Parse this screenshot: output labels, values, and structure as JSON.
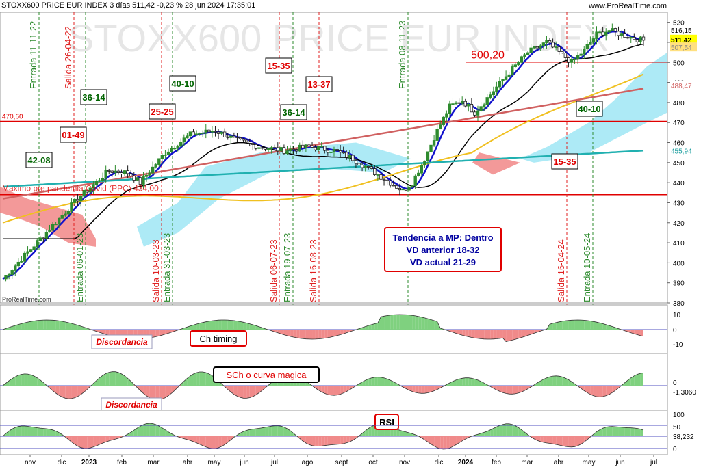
{
  "header": {
    "title": "STOXX600 PRICE EUR INDEX 3 días 511,42 -0,23 % 28 jun 2024 17:35:01",
    "site": "www.ProRealTime.com",
    "watermark": "STOXX600 PRICE EUR INDEX",
    "logo_small": "ProRealTime.com"
  },
  "colors": {
    "price_up": "#2e8b2e",
    "price_down": "#1a1a1a",
    "blue_ma": "#1010cc",
    "black_ma": "#000000",
    "yellow_ma": "#f0c020",
    "cyan_ma": "#20b0b0",
    "red_ma": "#d06060",
    "cloud_pos": "#9fe6f5",
    "cloud_neg": "#f08080",
    "hline": "#e00000",
    "entry": "#2e8b2e",
    "exit": "#e02020",
    "box_green": "#006400",
    "box_red": "#e00000",
    "osc_pos": "#7fd17f",
    "osc_neg": "#f08a8a",
    "panel_line": "#5050c0"
  },
  "chart_data": {
    "type": "candlestick",
    "y_axis": {
      "min": 380,
      "max": 525,
      "ticks": [
        380,
        390,
        400,
        410,
        420,
        430,
        440,
        450,
        460,
        470,
        480,
        490,
        500,
        510,
        520
      ]
    },
    "x_labels": [
      "nov",
      "dic",
      "2023",
      "feb",
      "mar",
      "abr",
      "may",
      "jun",
      "jul",
      "ago",
      "sept",
      "oct",
      "nov",
      "dic",
      "2024",
      "feb",
      "mar",
      "abr",
      "may",
      "jun",
      "jul"
    ],
    "price_labels": {
      "last": "511,42",
      "l1": "516,15",
      "l2": "507,54",
      "l3": "488,47",
      "l4": "455,94"
    },
    "horizontal_levels": [
      {
        "value": 500.2,
        "label": "500,20"
      },
      {
        "value": 470.6,
        "label": "470,60"
      },
      {
        "value": 434.0,
        "label": "Maximo pre pandemia Covid (PPC) 434,00"
      }
    ],
    "vertical_signals": [
      {
        "label": "Entrada 11-11-22",
        "kind": "entry"
      },
      {
        "label": "Salida 26-04-22",
        "kind": "exit"
      },
      {
        "label": "Entrada 06-01-23",
        "kind": "entry"
      },
      {
        "label": "Salida 10-03-23",
        "kind": "exit"
      },
      {
        "label": "Entrada 31-03-23",
        "kind": "entry"
      },
      {
        "label": "Salida 06-07-23",
        "kind": "exit"
      },
      {
        "label": "Entrada 19-07-23",
        "kind": "entry"
      },
      {
        "label": "Salida 16-08-23",
        "kind": "exit"
      },
      {
        "label": "Entrada 08-11-23",
        "kind": "entry"
      },
      {
        "label": "Salida 16-04-24",
        "kind": "exit"
      },
      {
        "label": "Entrada 10-05-24",
        "kind": "entry"
      }
    ],
    "boxes": [
      {
        "text": "42-08",
        "kind": "green"
      },
      {
        "text": "01-49",
        "kind": "red"
      },
      {
        "text": "36-14",
        "kind": "green"
      },
      {
        "text": "25-25",
        "kind": "red"
      },
      {
        "text": "40-10",
        "kind": "green"
      },
      {
        "text": "15-35",
        "kind": "red"
      },
      {
        "text": "36-14",
        "kind": "green"
      },
      {
        "text": "13-37",
        "kind": "red"
      },
      {
        "text": "40-10",
        "kind": "green"
      },
      {
        "text": "15-35",
        "kind": "red"
      }
    ],
    "trend_box": [
      "Tendencia a MP: Dentro",
      "VD anterior 18-32",
      "VD actual 21-29"
    ],
    "panels": {
      "ch_timing": {
        "label": "Ch timing",
        "note": "Discordancia",
        "ticks": [
          "10",
          "0",
          "-10"
        ]
      },
      "sch": {
        "label": "SCh o curva magica",
        "note": "Discordancia",
        "ticks": [
          "0",
          "-1,3060"
        ]
      },
      "rsi": {
        "label": "RSI",
        "ticks": [
          "100",
          "50",
          "38,232",
          "0"
        ]
      }
    }
  }
}
